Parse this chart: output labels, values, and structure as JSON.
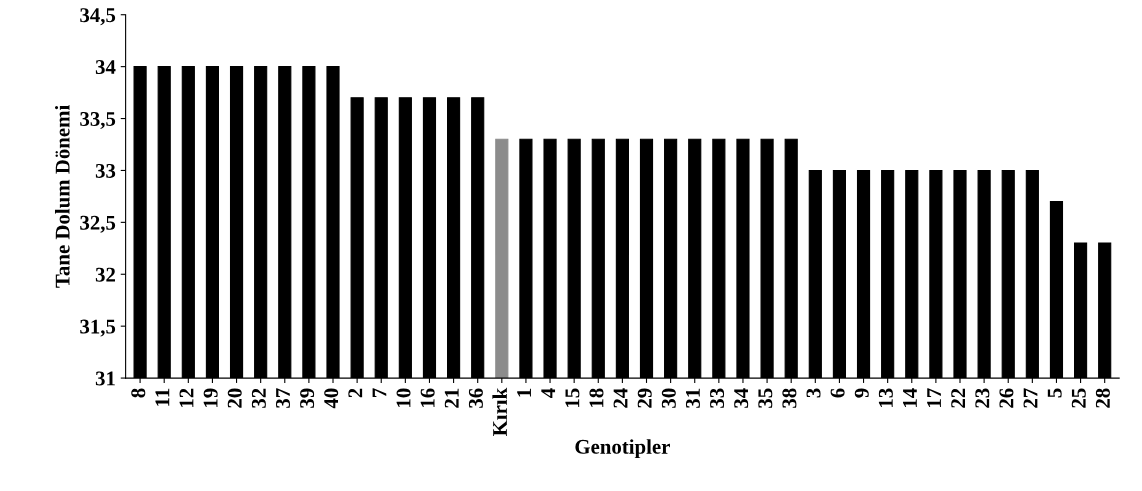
{
  "chart_data": {
    "type": "bar",
    "xlabel": "Genotipler",
    "ylabel": "Tane Dolum Dönemi",
    "categories": [
      "8",
      "11",
      "12",
      "19",
      "20",
      "32",
      "37",
      "39",
      "40",
      "2",
      "7",
      "10",
      "16",
      "21",
      "36",
      "Kırık",
      "1",
      "4",
      "15",
      "18",
      "24",
      "29",
      "30",
      "31",
      "33",
      "34",
      "35",
      "38",
      "3",
      "6",
      "9",
      "13",
      "14",
      "17",
      "22",
      "23",
      "26",
      "27",
      "5",
      "25",
      "28"
    ],
    "values": [
      34,
      34,
      34,
      34,
      34,
      34,
      34,
      34,
      34,
      33.7,
      33.7,
      33.7,
      33.7,
      33.7,
      33.7,
      33.3,
      33.3,
      33.3,
      33.3,
      33.3,
      33.3,
      33.3,
      33.3,
      33.3,
      33.3,
      33.3,
      33.3,
      33.3,
      33,
      33,
      33,
      33,
      33,
      33,
      33,
      33,
      33,
      33,
      32.7,
      32.3,
      32.3
    ],
    "colors": [
      "#000000",
      "#000000",
      "#000000",
      "#000000",
      "#000000",
      "#000000",
      "#000000",
      "#000000",
      "#000000",
      "#000000",
      "#000000",
      "#000000",
      "#000000",
      "#000000",
      "#000000",
      "#8c8c8c",
      "#000000",
      "#000000",
      "#000000",
      "#000000",
      "#000000",
      "#000000",
      "#000000",
      "#000000",
      "#000000",
      "#000000",
      "#000000",
      "#000000",
      "#000000",
      "#000000",
      "#000000",
      "#000000",
      "#000000",
      "#000000",
      "#000000",
      "#000000",
      "#000000",
      "#000000",
      "#000000",
      "#000000",
      "#000000"
    ],
    "ylim": [
      31,
      34.5
    ],
    "yticks": [
      31,
      {
        "value": 31.5,
        "label": "31,5"
      },
      32,
      {
        "value": 32.5,
        "label": "32,5"
      },
      33,
      {
        "value": 33.5,
        "label": "33,5"
      },
      34,
      {
        "value": 34.5,
        "label": "34,5"
      }
    ],
    "grid": false,
    "legend": false
  }
}
